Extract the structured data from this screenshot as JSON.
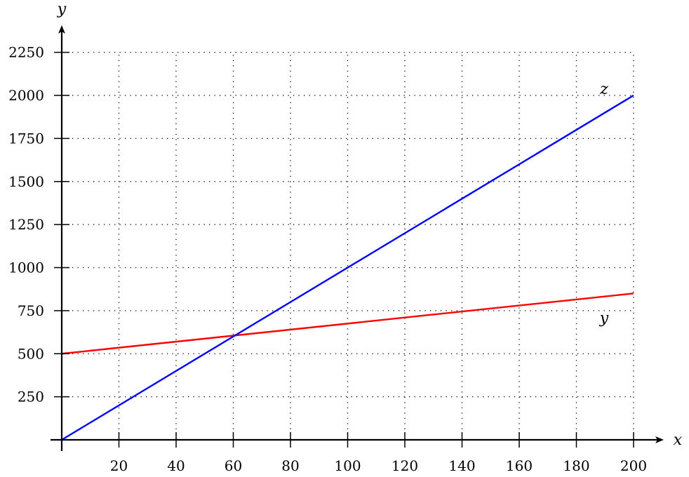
{
  "chart_data": {
    "type": "line",
    "title": "",
    "xlabel": "x",
    "ylabel": "y",
    "xlim": [
      0,
      210
    ],
    "ylim": [
      0,
      2400
    ],
    "x_ticks": [
      20,
      40,
      60,
      80,
      100,
      120,
      140,
      160,
      180,
      200
    ],
    "y_ticks": [
      250,
      500,
      750,
      1000,
      1250,
      1500,
      1750,
      2000,
      2250
    ],
    "x_tick_labels": [
      "20",
      "40",
      "60",
      "80",
      "100",
      "120",
      "140",
      "160",
      "180",
      "200"
    ],
    "y_tick_labels": [
      "250",
      "500",
      "750",
      "1000",
      "1250",
      "1500",
      "1750",
      "2000",
      "2250"
    ],
    "grid": true,
    "grid_style": "dotted",
    "series": [
      {
        "name": "y",
        "color": "#ff0000",
        "x": [
          0,
          200
        ],
        "values": [
          500,
          850
        ]
      },
      {
        "name": "z",
        "color": "#0000ff",
        "x": [
          0,
          200
        ],
        "values": [
          0,
          2000
        ]
      }
    ]
  }
}
